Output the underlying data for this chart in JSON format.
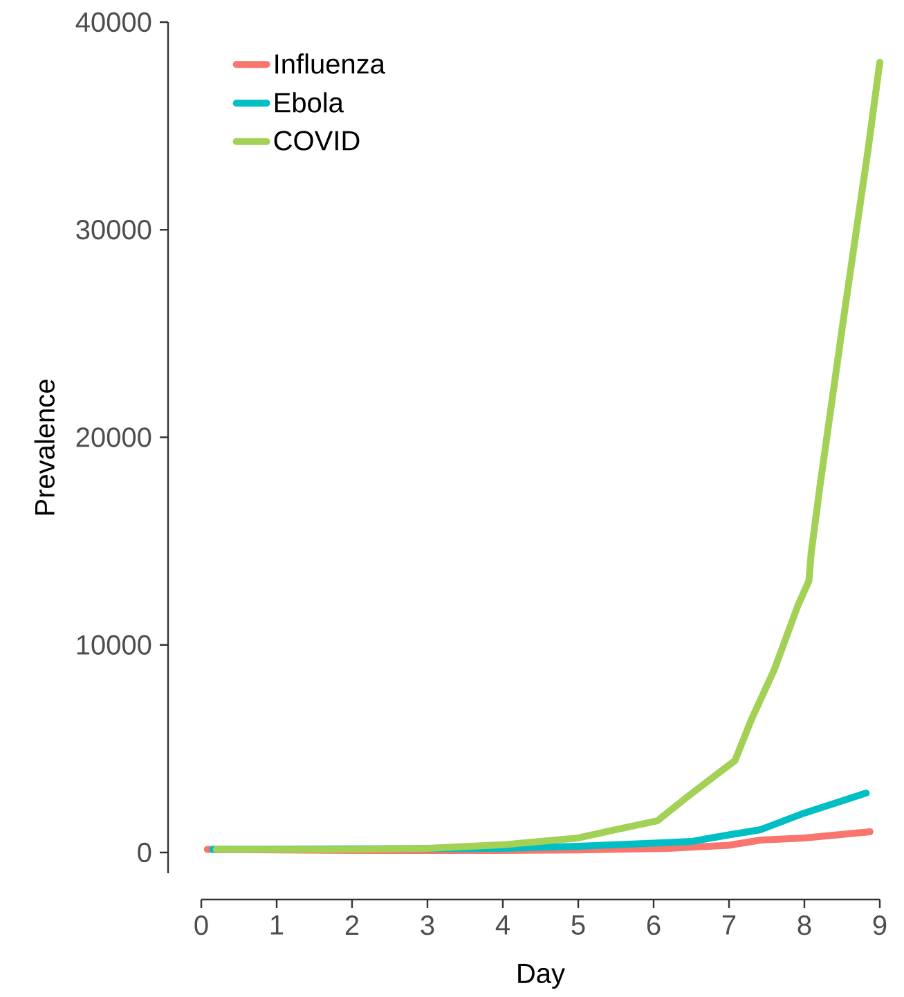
{
  "chart_data": {
    "type": "line",
    "xlabel": "Day",
    "ylabel": "Prevalence",
    "xlim": [
      0,
      9
    ],
    "ylim": [
      -1000,
      40000
    ],
    "xticks": [
      0,
      1,
      2,
      3,
      4,
      5,
      6,
      7,
      8,
      9
    ],
    "yticks": [
      0,
      10000,
      20000,
      30000,
      40000
    ],
    "legend": "top left",
    "marker": "none",
    "line_style": "solid",
    "series": [
      {
        "name": "Influenza",
        "color": "#f8766d",
        "x": [
          0.08,
          2,
          4,
          5,
          6.2,
          7,
          7.42,
          8,
          8.87
        ],
        "values": [
          150,
          100,
          100,
          120,
          200,
          350,
          600,
          700,
          1000
        ]
      },
      {
        "name": "Ebola",
        "color": "#00bfc4",
        "x": [
          0.15,
          2,
          4,
          5,
          6,
          6.5,
          7,
          7.42,
          8,
          8.82
        ],
        "values": [
          150,
          null,
          200,
          300,
          450,
          530,
          850,
          1100,
          1900,
          2860
        ]
      },
      {
        "name": "COVID",
        "color": "#a3d155",
        "x": [
          0.2,
          2,
          3,
          4,
          5,
          5.5,
          6.05,
          6.44,
          7.08,
          7.3,
          7.6,
          7.91,
          8.06,
          8.09,
          8.21,
          8.52,
          8.84,
          9
        ],
        "values": [
          150,
          150,
          200,
          370,
          700,
          1100,
          1530,
          2660,
          4430,
          6430,
          8800,
          11860,
          13090,
          14420,
          17750,
          25740,
          33740,
          38070
        ]
      }
    ]
  }
}
